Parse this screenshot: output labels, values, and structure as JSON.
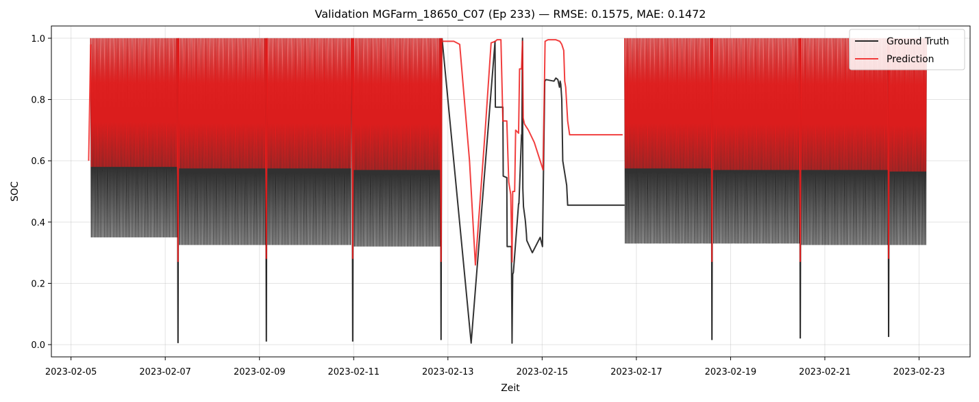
{
  "chart_data": {
    "type": "line",
    "title": "Validation MGFarm_18650_C07 (Ep 233) — RMSE: 0.1575, MAE: 0.1472",
    "xlabel": "Zeit",
    "ylabel": "SOC",
    "xlim": [
      "2023-02-04T14:00",
      "2023-02-24T02:00"
    ],
    "ylim": [
      -0.04,
      1.04
    ],
    "x_ticks": [
      "2023-02-05",
      "2023-02-07",
      "2023-02-09",
      "2023-02-11",
      "2023-02-13",
      "2023-02-15",
      "2023-02-17",
      "2023-02-19",
      "2023-02-21",
      "2023-02-23"
    ],
    "y_ticks": [
      "0.0",
      "0.2",
      "0.4",
      "0.6",
      "0.8",
      "1.0"
    ],
    "grid": true,
    "legend_position": "top-right",
    "colors": {
      "ground_truth": "#262626",
      "prediction": "#ee1c1c"
    },
    "cycling_segments": [
      {
        "start": "2023-02-05T10:00",
        "end": "2023-02-07T06:00",
        "gt_min": 0.35,
        "gt_max": 1.0,
        "pred_min": 0.58,
        "pred_max": 1.0
      },
      {
        "start": "2023-02-07T07:00",
        "end": "2023-02-09T03:00",
        "gt_min": 0.325,
        "gt_max": 1.0,
        "pred_min": 0.575,
        "pred_max": 1.0
      },
      {
        "start": "2023-02-09T04:00",
        "end": "2023-02-10T23:00",
        "gt_min": 0.325,
        "gt_max": 1.0,
        "pred_min": 0.575,
        "pred_max": 1.0
      },
      {
        "start": "2023-02-11T00:00",
        "end": "2023-02-12T20:00",
        "gt_min": 0.32,
        "gt_max": 1.0,
        "pred_min": 0.57,
        "pred_max": 1.0
      },
      {
        "start": "2023-02-16T18:00",
        "end": "2023-02-18T14:00",
        "gt_min": 0.33,
        "gt_max": 1.0,
        "pred_min": 0.575,
        "pred_max": 1.0
      },
      {
        "start": "2023-02-18T15:00",
        "end": "2023-02-20T11:00",
        "gt_min": 0.33,
        "gt_max": 1.0,
        "pred_min": 0.57,
        "pred_max": 1.0
      },
      {
        "start": "2023-02-20T12:00",
        "end": "2023-02-22T08:00",
        "gt_min": 0.325,
        "gt_max": 1.0,
        "pred_min": 0.57,
        "pred_max": 1.0
      },
      {
        "start": "2023-02-22T09:00",
        "end": "2023-02-23T04:00",
        "gt_min": 0.325,
        "gt_max": 1.0,
        "pred_min": 0.565,
        "pred_max": 1.0
      }
    ],
    "dips": [
      {
        "x": "2023-02-07T06:30",
        "gt": 0.005,
        "pred": 0.27
      },
      {
        "x": "2023-02-09T03:30",
        "gt": 0.01,
        "pred": 0.28
      },
      {
        "x": "2023-02-10T23:30",
        "gt": 0.01,
        "pred": 0.28
      },
      {
        "x": "2023-02-12T20:30",
        "gt": 0.015,
        "pred": 0.27
      },
      {
        "x": "2023-02-18T14:30",
        "gt": 0.015,
        "pred": 0.27
      },
      {
        "x": "2023-02-20T11:30",
        "gt": 0.02,
        "pred": 0.27
      },
      {
        "x": "2023-02-22T08:30",
        "gt": 0.025,
        "pred": 0.28
      }
    ],
    "series": [
      {
        "name": "Ground Truth",
        "key": "gt",
        "x": [
          "2023-02-04T14:00",
          "2023-02-05T10:00",
          "2023-02-12T21:00",
          "2023-02-13T11:50",
          "2023-02-14T00:00",
          "2023-02-14T00:10",
          "2023-02-14T04:00",
          "2023-02-14T04:10",
          "2023-02-14T06:00",
          "2023-02-14T06:10",
          "2023-02-14T08:20",
          "2023-02-14T08:40",
          "2023-02-14T09:00",
          "2023-02-14T09:20",
          "2023-02-14T12:00",
          "2023-02-14T12:10",
          "2023-02-14T13:30",
          "2023-02-14T13:40",
          "2023-02-14T14:00",
          "2023-02-14T14:10",
          "2023-02-14T14:30",
          "2023-02-14T15:20",
          "2023-02-14T15:30",
          "2023-02-14T16:00",
          "2023-02-14T16:10",
          "2023-02-14T19:00",
          "2023-02-14T23:00",
          "2023-02-15T00:10",
          "2023-02-15T01:20",
          "2023-02-15T02:00",
          "2023-02-15T06:00",
          "2023-02-15T07:00",
          "2023-02-15T08:00",
          "2023-02-15T08:30",
          "2023-02-15T08:50",
          "2023-02-15T09:10",
          "2023-02-15T09:30",
          "2023-02-15T10:00",
          "2023-02-15T10:30",
          "2023-02-15T12:30",
          "2023-02-15T13:00",
          "2023-02-15T14:00",
          "2023-02-16T18:00",
          "2023-02-23T04:00"
        ],
        "y": [
          null,
          1.0,
          1.0,
          0.005,
          0.99,
          0.775,
          0.775,
          0.55,
          0.545,
          0.32,
          0.32,
          0.005,
          0.23,
          0.235,
          0.46,
          0.46,
          0.685,
          0.685,
          1.0,
          0.51,
          0.45,
          0.41,
          0.4,
          0.36,
          0.34,
          0.3,
          0.35,
          0.32,
          0.86,
          0.865,
          0.86,
          0.87,
          0.865,
          0.85,
          0.84,
          0.86,
          0.85,
          0.8,
          0.6,
          0.52,
          0.455,
          0.455,
          0.455,
          0.325
        ]
      },
      {
        "name": "Prediction",
        "key": "pred",
        "x": [
          "2023-02-05T09:00",
          "2023-02-05T10:00",
          "2023-02-12T21:00",
          "2023-02-13T03:00",
          "2023-02-13T06:00",
          "2023-02-13T11:00",
          "2023-02-13T14:00",
          "2023-02-13T19:00",
          "2023-02-13T22:00",
          "2023-02-14T00:10",
          "2023-02-14T01:00",
          "2023-02-14T03:00",
          "2023-02-14T04:00",
          "2023-02-14T06:00",
          "2023-02-14T07:00",
          "2023-02-14T08:00",
          "2023-02-14T08:40",
          "2023-02-14T09:00",
          "2023-02-14T10:00",
          "2023-02-14T10:30",
          "2023-02-14T12:00",
          "2023-02-14T12:30",
          "2023-02-14T13:30",
          "2023-02-14T14:00",
          "2023-02-14T14:20",
          "2023-02-14T15:00",
          "2023-02-14T17:00",
          "2023-02-14T20:00",
          "2023-02-14T23:00",
          "2023-02-15T00:30",
          "2023-02-15T01:30",
          "2023-02-15T03:00",
          "2023-02-15T07:00",
          "2023-02-15T09:00",
          "2023-02-15T10:00",
          "2023-02-15T11:00",
          "2023-02-15T11:30",
          "2023-02-15T12:00",
          "2023-02-15T13:00",
          "2023-02-15T14:00",
          "2023-02-16T17:00"
        ],
        "y": [
          0.6,
          0.98,
          0.99,
          0.99,
          0.98,
          0.6,
          0.26,
          0.7,
          0.985,
          0.99,
          0.995,
          0.995,
          0.73,
          0.73,
          0.53,
          0.49,
          0.27,
          0.5,
          0.5,
          0.7,
          0.69,
          0.9,
          0.9,
          0.99,
          0.74,
          0.72,
          0.7,
          0.66,
          0.6,
          0.57,
          0.99,
          0.995,
          0.995,
          0.99,
          0.98,
          0.96,
          0.86,
          0.84,
          0.73,
          0.685,
          0.685
        ]
      }
    ]
  }
}
